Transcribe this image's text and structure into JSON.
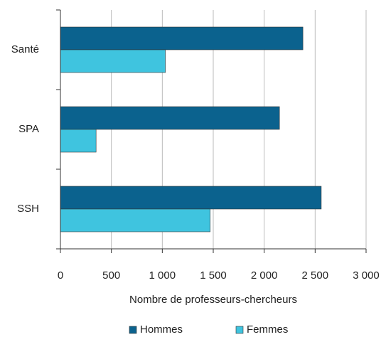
{
  "chart_data": {
    "type": "hbar",
    "categories": [
      "Santé",
      "SPA",
      "SSH"
    ],
    "series": [
      {
        "name": "Hommes",
        "color": "#0b628e",
        "values": [
          2380,
          2150,
          2560
        ]
      },
      {
        "name": "Femmes",
        "color": "#3fc4df",
        "values": [
          1030,
          350,
          1470
        ]
      }
    ],
    "xlim": [
      0,
      3000
    ],
    "xticks": [
      0,
      500,
      {
        "value": 1000,
        "label": "1 000"
      },
      {
        "value": 1500,
        "label": "1 500"
      },
      {
        "value": 2000,
        "label": "2 000"
      },
      {
        "value": 2500,
        "label": "2 500"
      },
      {
        "value": 3000,
        "label": "3 000"
      }
    ],
    "xlabel": "Nombre de professeurs-chercheurs",
    "grid": true,
    "legend": "bottom"
  }
}
